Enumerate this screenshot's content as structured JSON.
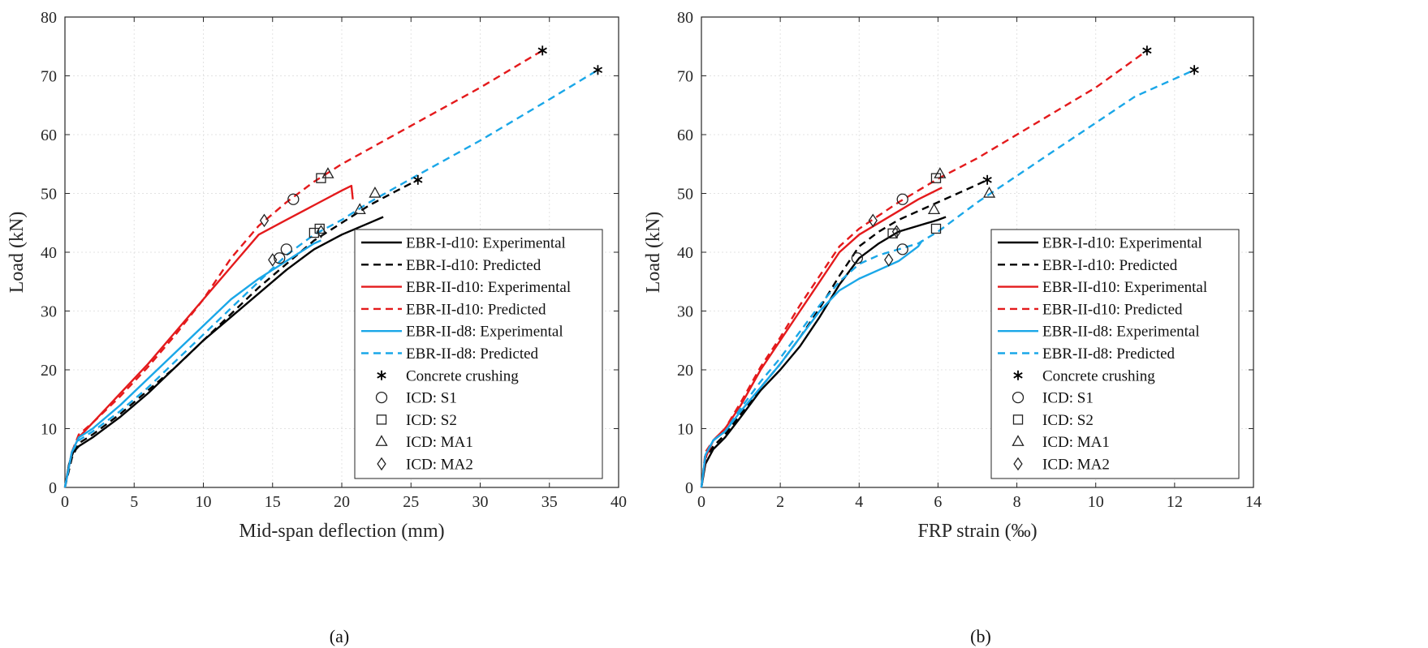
{
  "colors": {
    "EBR-I-d10": "#000000",
    "EBR-II-d10": "#e41a1c",
    "EBR-II-d8": "#1aa7e8"
  },
  "legend": [
    {
      "label": "EBR-I-d10: Experimental",
      "kind": "line",
      "color": "#000000",
      "dash": false
    },
    {
      "label": "EBR-I-d10: Predicted",
      "kind": "line",
      "color": "#000000",
      "dash": true
    },
    {
      "label": "EBR-II-d10: Experimental",
      "kind": "line",
      "color": "#e41a1c",
      "dash": false
    },
    {
      "label": "EBR-II-d10: Predicted",
      "kind": "line",
      "color": "#e41a1c",
      "dash": true
    },
    {
      "label": "EBR-II-d8: Experimental",
      "kind": "line",
      "color": "#1aa7e8",
      "dash": false
    },
    {
      "label": "EBR-II-d8: Predicted",
      "kind": "line",
      "color": "#1aa7e8",
      "dash": true
    },
    {
      "label": "Concrete crushing",
      "kind": "marker",
      "marker": "asterisk"
    },
    {
      "label": "ICD: S1",
      "kind": "marker",
      "marker": "circle"
    },
    {
      "label": "ICD: S2",
      "kind": "marker",
      "marker": "square"
    },
    {
      "label": "ICD: MA1",
      "kind": "marker",
      "marker": "triangle"
    },
    {
      "label": "ICD: MA2",
      "kind": "marker",
      "marker": "diamond"
    }
  ],
  "chart_data": [
    {
      "type": "line",
      "sublabel": "(a)",
      "xlabel": "Mid-span deflection (mm)",
      "ylabel": "Load (kN)",
      "xlim": [
        0,
        40
      ],
      "ylim": [
        0,
        80
      ],
      "xticks": [
        0,
        5,
        10,
        15,
        20,
        25,
        30,
        35,
        40
      ],
      "yticks": [
        0,
        10,
        20,
        30,
        40,
        50,
        60,
        70,
        80
      ],
      "grid": true,
      "legend_position": "right",
      "series": [
        {
          "name": "EBR-I-d10: Experimental",
          "color": "#000000",
          "dash": false,
          "points": [
            [
              0,
              0
            ],
            [
              0.3,
              4
            ],
            [
              0.6,
              6
            ],
            [
              1,
              7
            ],
            [
              2,
              8.5
            ],
            [
              4,
              12
            ],
            [
              6,
              16
            ],
            [
              8,
              20.5
            ],
            [
              10,
              25
            ],
            [
              12,
              29
            ],
            [
              14,
              33
            ],
            [
              16,
              37
            ],
            [
              18,
              40.5
            ],
            [
              20,
              43
            ],
            [
              22,
              45
            ],
            [
              23,
              46
            ]
          ]
        },
        {
          "name": "EBR-I-d10: Predicted",
          "color": "#000000",
          "dash": true,
          "points": [
            [
              0,
              0
            ],
            [
              0.5,
              5
            ],
            [
              1,
              7.5
            ],
            [
              2,
              9
            ],
            [
              4,
              12.5
            ],
            [
              6,
              16.5
            ],
            [
              8,
              20.5
            ],
            [
              10,
              25
            ],
            [
              12,
              29.5
            ],
            [
              14,
              34
            ],
            [
              16,
              38
            ],
            [
              18,
              42
            ],
            [
              20,
              45
            ],
            [
              22,
              48
            ],
            [
              24,
              50.5
            ],
            [
              25.5,
              52.3
            ]
          ]
        },
        {
          "name": "EBR-II-d10: Experimental",
          "color": "#e41a1c",
          "dash": false,
          "points": [
            [
              0,
              0
            ],
            [
              0.5,
              6
            ],
            [
              1,
              8.5
            ],
            [
              2,
              11
            ],
            [
              4,
              16
            ],
            [
              6,
              21
            ],
            [
              8,
              26.5
            ],
            [
              10,
              32
            ],
            [
              12,
              37.5
            ],
            [
              14,
              43
            ],
            [
              16,
              45.5
            ],
            [
              18,
              48
            ],
            [
              20,
              50.5
            ],
            [
              20.7,
              51.3
            ],
            [
              20.8,
              49
            ]
          ]
        },
        {
          "name": "EBR-II-d10: Predicted",
          "color": "#e41a1c",
          "dash": true,
          "points": [
            [
              0,
              0
            ],
            [
              0.5,
              6
            ],
            [
              1,
              9
            ],
            [
              2,
              11
            ],
            [
              4,
              15.5
            ],
            [
              6,
              20.5
            ],
            [
              8,
              26
            ],
            [
              10,
              32
            ],
            [
              12,
              39
            ],
            [
              14,
              44.5
            ],
            [
              16,
              48.5
            ],
            [
              18,
              52
            ],
            [
              20,
              55
            ],
            [
              25,
              61.5
            ],
            [
              30,
              68
            ],
            [
              34.5,
              74.3
            ]
          ]
        },
        {
          "name": "EBR-II-d8: Experimental",
          "color": "#1aa7e8",
          "dash": false,
          "points": [
            [
              0,
              0
            ],
            [
              0.5,
              6
            ],
            [
              1,
              8.5
            ],
            [
              2,
              10
            ],
            [
              4,
              14
            ],
            [
              6,
              18.5
            ],
            [
              8,
              23
            ],
            [
              10,
              27.5
            ],
            [
              12,
              32
            ],
            [
              14,
              35.5
            ],
            [
              16,
              38.5
            ],
            [
              18,
              41.5
            ],
            [
              18.5,
              42
            ]
          ]
        },
        {
          "name": "EBR-II-d8: Predicted",
          "color": "#1aa7e8",
          "dash": true,
          "points": [
            [
              0,
              0
            ],
            [
              0.5,
              6
            ],
            [
              1,
              8
            ],
            [
              2,
              9.5
            ],
            [
              4,
              13
            ],
            [
              6,
              17
            ],
            [
              8,
              21.5
            ],
            [
              10,
              26
            ],
            [
              12,
              30.5
            ],
            [
              14,
              35
            ],
            [
              16,
              39.5
            ],
            [
              18,
              43
            ],
            [
              20,
              45.5
            ],
            [
              22,
              48.5
            ],
            [
              25,
              52.5
            ],
            [
              30,
              59
            ],
            [
              35,
              66
            ],
            [
              38.5,
              71
            ]
          ]
        }
      ],
      "markers": [
        {
          "marker": "asterisk",
          "x": 34.5,
          "y": 74.3
        },
        {
          "marker": "asterisk",
          "x": 38.5,
          "y": 71
        },
        {
          "marker": "asterisk",
          "x": 25.5,
          "y": 52.3
        },
        {
          "marker": "circle",
          "x": 16.5,
          "y": 49
        },
        {
          "marker": "circle",
          "x": 16,
          "y": 40.5
        },
        {
          "marker": "circle",
          "x": 15.5,
          "y": 39
        },
        {
          "marker": "square",
          "x": 18.5,
          "y": 52.6
        },
        {
          "marker": "square",
          "x": 18.4,
          "y": 44
        },
        {
          "marker": "square",
          "x": 18,
          "y": 43.3
        },
        {
          "marker": "triangle",
          "x": 19,
          "y": 53.3
        },
        {
          "marker": "triangle",
          "x": 22.4,
          "y": 50
        },
        {
          "marker": "triangle",
          "x": 21.3,
          "y": 47.2
        },
        {
          "marker": "diamond",
          "x": 14.4,
          "y": 45.4
        },
        {
          "marker": "diamond",
          "x": 15,
          "y": 38.7
        },
        {
          "marker": "diamond",
          "x": 18.5,
          "y": 43.5
        }
      ]
    },
    {
      "type": "line",
      "sublabel": "(b)",
      "xlabel": "FRP strain (‰)",
      "ylabel": "Load (kN)",
      "xlim": [
        0,
        14
      ],
      "ylim": [
        0,
        80
      ],
      "xticks": [
        0,
        2,
        4,
        6,
        8,
        10,
        12,
        14
      ],
      "yticks": [
        0,
        10,
        20,
        30,
        40,
        50,
        60,
        70,
        80
      ],
      "grid": true,
      "legend_position": "right",
      "series": [
        {
          "name": "EBR-I-d10: Experimental",
          "color": "#000000",
          "dash": false,
          "points": [
            [
              0,
              0
            ],
            [
              0.1,
              4
            ],
            [
              0.3,
              6.5
            ],
            [
              0.6,
              8.5
            ],
            [
              1,
              12
            ],
            [
              1.5,
              16.5
            ],
            [
              2,
              20
            ],
            [
              2.5,
              24
            ],
            [
              3,
              29
            ],
            [
              3.5,
              34.5
            ],
            [
              4,
              39
            ],
            [
              4.5,
              41.5
            ],
            [
              5,
              43.5
            ],
            [
              5.5,
              44.5
            ],
            [
              6,
              45.5
            ],
            [
              6.2,
              46
            ]
          ]
        },
        {
          "name": "EBR-I-d10: Predicted",
          "color": "#000000",
          "dash": true,
          "points": [
            [
              0,
              0
            ],
            [
              0.1,
              5
            ],
            [
              0.3,
              7
            ],
            [
              0.6,
              9
            ],
            [
              1,
              12.5
            ],
            [
              1.5,
              17
            ],
            [
              2,
              21
            ],
            [
              2.5,
              25.5
            ],
            [
              3,
              30.5
            ],
            [
              3.5,
              36
            ],
            [
              4,
              41
            ],
            [
              4.5,
              43.5
            ],
            [
              5,
              45.5
            ],
            [
              6,
              48.5
            ],
            [
              7,
              51.5
            ],
            [
              7.25,
              52.3
            ]
          ]
        },
        {
          "name": "EBR-II-d10: Experimental",
          "color": "#e41a1c",
          "dash": false,
          "points": [
            [
              0,
              0
            ],
            [
              0.1,
              5
            ],
            [
              0.3,
              8
            ],
            [
              0.6,
              10
            ],
            [
              1,
              14
            ],
            [
              1.5,
              20
            ],
            [
              2,
              25
            ],
            [
              2.5,
              30
            ],
            [
              3,
              35
            ],
            [
              3.5,
              40
            ],
            [
              4,
              43
            ],
            [
              4.5,
              45
            ],
            [
              5,
              47
            ],
            [
              5.5,
              49
            ],
            [
              6.1,
              51
            ]
          ]
        },
        {
          "name": "EBR-II-d10: Predicted",
          "color": "#e41a1c",
          "dash": true,
          "points": [
            [
              0,
              0
            ],
            [
              0.1,
              6
            ],
            [
              0.3,
              8
            ],
            [
              0.6,
              10
            ],
            [
              1,
              14.5
            ],
            [
              1.5,
              20.5
            ],
            [
              2,
              25.5
            ],
            [
              2.5,
              31
            ],
            [
              3,
              36
            ],
            [
              3.5,
              41
            ],
            [
              4,
              44
            ],
            [
              5,
              48.5
            ],
            [
              6,
              52.5
            ],
            [
              7,
              56
            ],
            [
              8,
              60
            ],
            [
              9,
              64
            ],
            [
              10,
              68
            ],
            [
              11.3,
              74.3
            ]
          ]
        },
        {
          "name": "EBR-II-d8: Experimental",
          "color": "#1aa7e8",
          "dash": false,
          "points": [
            [
              0,
              0
            ],
            [
              0.1,
              5.5
            ],
            [
              0.3,
              8
            ],
            [
              0.6,
              9.5
            ],
            [
              1,
              13
            ],
            [
              1.5,
              17
            ],
            [
              2,
              21
            ],
            [
              2.5,
              25.5
            ],
            [
              3,
              30
            ],
            [
              3.5,
              33.5
            ],
            [
              4,
              35.5
            ],
            [
              4.5,
              37
            ],
            [
              5,
              38.5
            ],
            [
              5.5,
              41
            ],
            [
              5.6,
              42
            ]
          ]
        },
        {
          "name": "EBR-II-d8: Predicted",
          "color": "#1aa7e8",
          "dash": true,
          "points": [
            [
              0,
              0
            ],
            [
              0.1,
              5.5
            ],
            [
              0.3,
              8
            ],
            [
              0.6,
              9.5
            ],
            [
              1,
              13.5
            ],
            [
              1.5,
              18
            ],
            [
              2,
              22
            ],
            [
              2.5,
              26.5
            ],
            [
              3,
              31
            ],
            [
              3.5,
              35
            ],
            [
              4,
              38
            ],
            [
              4.5,
              39.5
            ],
            [
              5,
              40.5
            ],
            [
              5.5,
              41.5
            ],
            [
              6,
              43.5
            ],
            [
              7,
              48.5
            ],
            [
              8,
              53
            ],
            [
              9,
              57.5
            ],
            [
              10,
              62
            ],
            [
              11,
              66.5
            ],
            [
              12.5,
              71
            ]
          ]
        }
      ],
      "markers": [
        {
          "marker": "asterisk",
          "x": 11.3,
          "y": 74.3
        },
        {
          "marker": "asterisk",
          "x": 12.5,
          "y": 71
        },
        {
          "marker": "asterisk",
          "x": 7.25,
          "y": 52.3
        },
        {
          "marker": "circle",
          "x": 3.95,
          "y": 39
        },
        {
          "marker": "circle",
          "x": 5.1,
          "y": 49
        },
        {
          "marker": "circle",
          "x": 5.1,
          "y": 40.5
        },
        {
          "marker": "square",
          "x": 5.95,
          "y": 52.6
        },
        {
          "marker": "square",
          "x": 4.85,
          "y": 43.2
        },
        {
          "marker": "square",
          "x": 5.95,
          "y": 44
        },
        {
          "marker": "triangle",
          "x": 6.05,
          "y": 53.3
        },
        {
          "marker": "triangle",
          "x": 5.9,
          "y": 47.2
        },
        {
          "marker": "triangle",
          "x": 7.3,
          "y": 50
        },
        {
          "marker": "diamond",
          "x": 4.35,
          "y": 45.4
        },
        {
          "marker": "diamond",
          "x": 4.75,
          "y": 38.7
        },
        {
          "marker": "diamond",
          "x": 4.95,
          "y": 43.5
        }
      ]
    }
  ]
}
